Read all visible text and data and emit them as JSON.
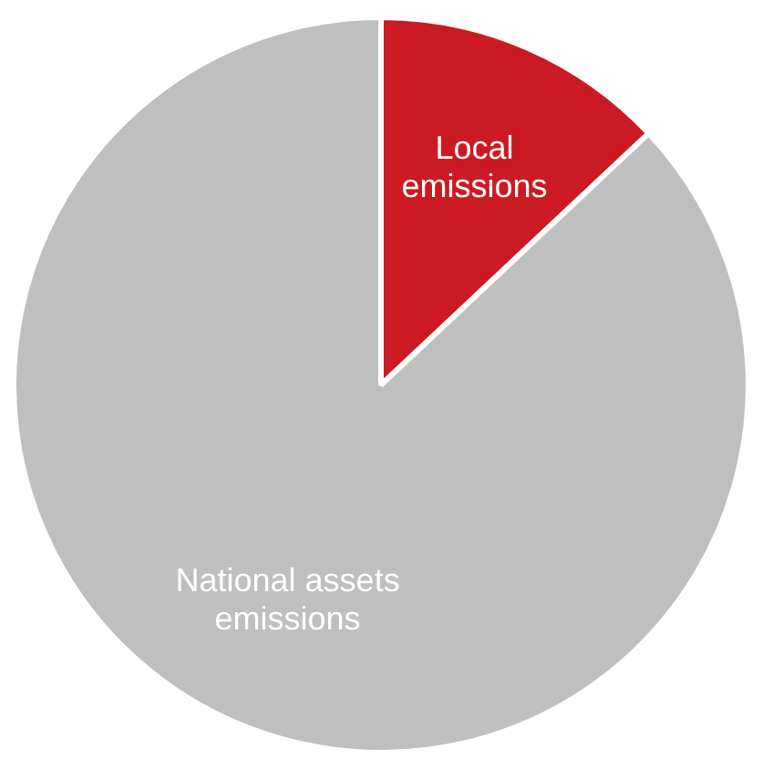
{
  "chart_data": {
    "type": "pie",
    "categories": [
      "Local emissions",
      "National assets emissions"
    ],
    "values": [
      13,
      87
    ],
    "colors": [
      "#cc1a22",
      "#bfbfbf"
    ],
    "legend": false
  }
}
